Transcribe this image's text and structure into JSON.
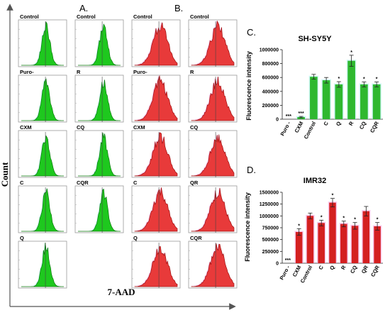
{
  "panel_letters": {
    "a": "A.",
    "b": "B.",
    "c": "C.",
    "d": "D."
  },
  "y_axis_label": "Count",
  "x_axis_label": "7-AAD",
  "colors": {
    "green": "#1ec81e",
    "green_edge": "#0b7a0b",
    "red": "#e83a3a",
    "red_edge": "#a01010",
    "pink_halo": "#f4a0e0",
    "cyan_halo": "#aaf0f0"
  },
  "histograms_A": [
    [
      {
        "label": "Control"
      },
      {
        "label": "Control"
      }
    ],
    [
      {
        "label": "Puro-"
      },
      {
        "label": "R"
      }
    ],
    [
      {
        "label": "CXM"
      },
      {
        "label": "CQ"
      }
    ],
    [
      {
        "label": "C"
      },
      {
        "label": "CQR"
      }
    ],
    [
      {
        "label": "Q"
      },
      null
    ]
  ],
  "histograms_B": [
    [
      {
        "label": "Control"
      },
      {
        "label": "Control"
      }
    ],
    [
      {
        "label": "Puro-"
      },
      {
        "label": "R"
      }
    ],
    [
      {
        "label": "CXM"
      },
      {
        "label": "CQ"
      }
    ],
    [
      {
        "label": "C"
      },
      {
        "label": "QR"
      }
    ],
    [
      {
        "label": "Q"
      },
      {
        "label": "CQR"
      }
    ]
  ],
  "chart_data": [
    {
      "type": "bar",
      "title": "SH-SY5Y",
      "ylabel": "Fluorescence intensity",
      "categories": [
        "Puro -",
        "CXM",
        "Control",
        "C",
        "Q",
        "R",
        "CQ",
        "CQR"
      ],
      "values": [
        0,
        30000,
        610000,
        560000,
        500000,
        840000,
        500000,
        500000
      ],
      "errors": [
        0,
        10000,
        35000,
        40000,
        40000,
        80000,
        35000,
        35000
      ],
      "annotations": [
        "***",
        "***",
        "",
        "",
        "*",
        "*",
        "*",
        "*"
      ],
      "ylim": [
        0,
        1000000
      ],
      "yticks": [
        "0",
        "200000",
        "400000",
        "600000",
        "800000",
        "1000000"
      ],
      "color": "#2fb82f"
    },
    {
      "type": "bar",
      "title": "IMR32",
      "ylabel": "Fluorescence intensity",
      "categories": [
        "Puro -",
        "CXM",
        "Control",
        "C",
        "Q",
        "R",
        "CQ",
        "QR",
        "CQR"
      ],
      "values": [
        0,
        660000,
        1000000,
        850000,
        1280000,
        830000,
        790000,
        1100000,
        780000
      ],
      "errors": [
        0,
        70000,
        60000,
        60000,
        90000,
        60000,
        70000,
        100000,
        80000
      ],
      "annotations": [
        "***",
        "*",
        "",
        "*",
        "*",
        "*",
        "*",
        "",
        "*"
      ],
      "ylim": [
        0,
        1500000
      ],
      "yticks": [
        "0",
        "250000",
        "500000",
        "750000",
        "1000000",
        "1250000",
        "1500000"
      ],
      "color": "#d42020"
    }
  ]
}
